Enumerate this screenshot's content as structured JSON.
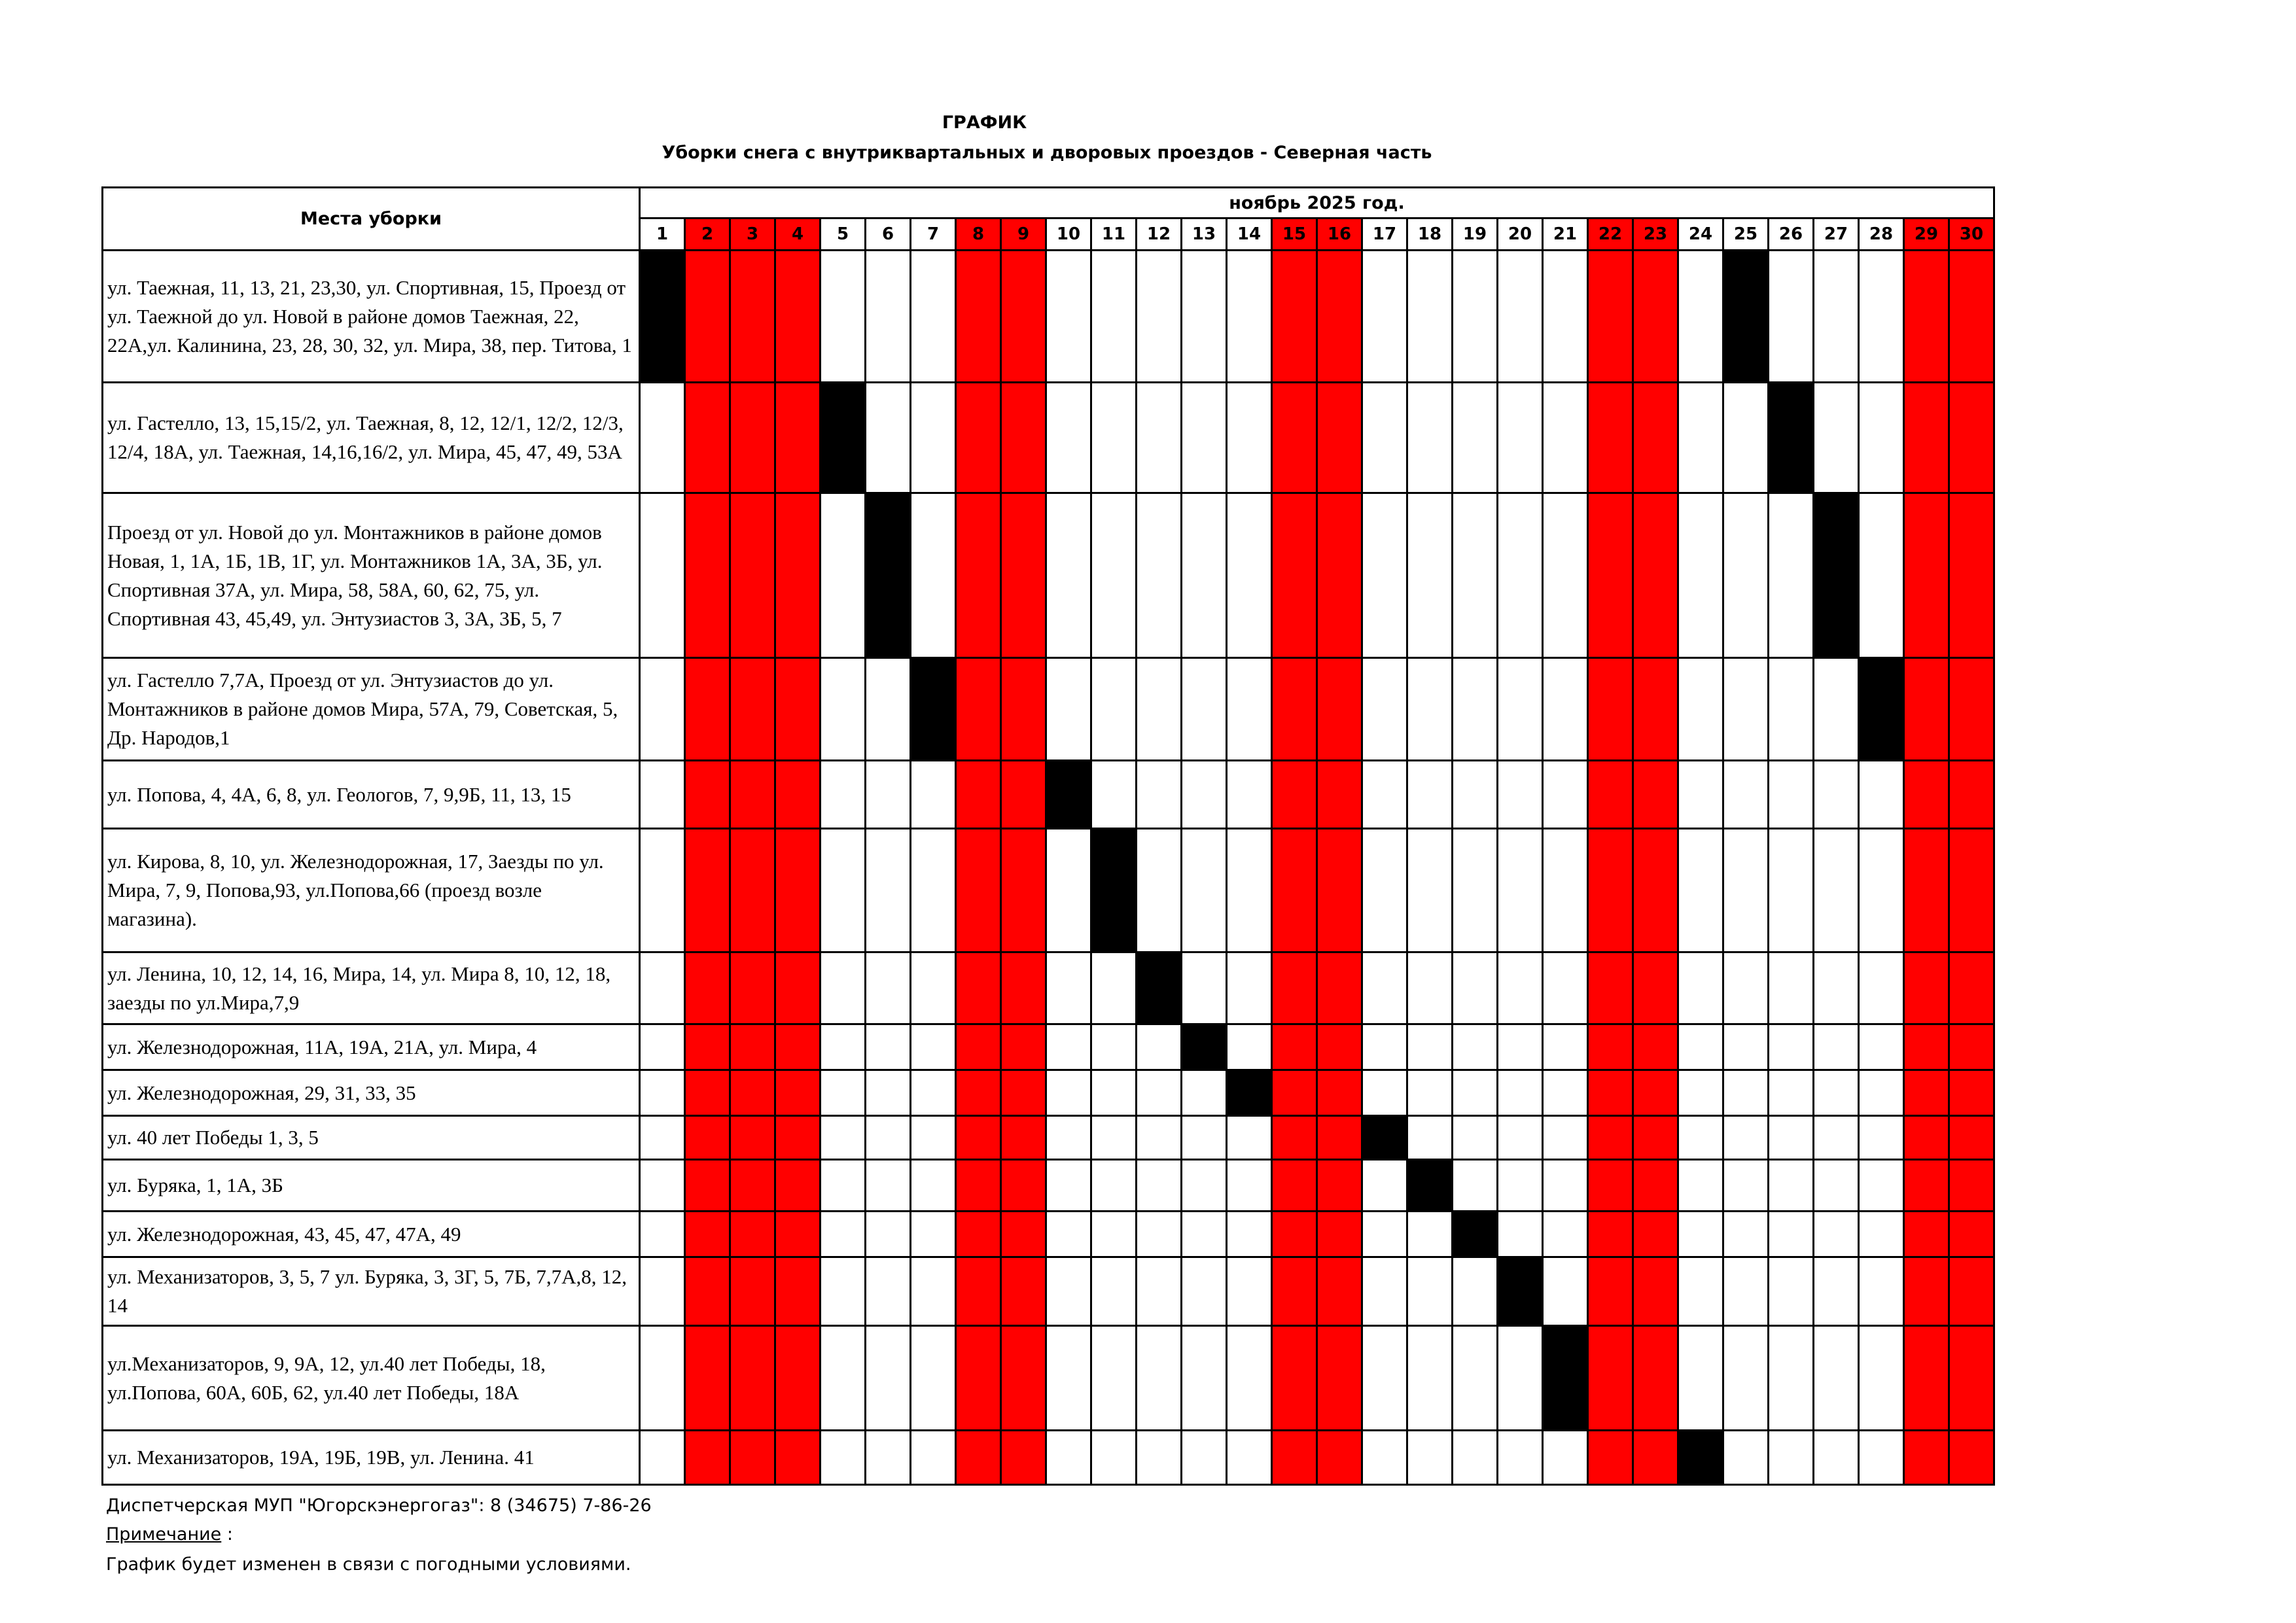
{
  "title": "ГРАФИК",
  "subtitle": "Уборки  снега  с внутриквартальных и дворовых проездов - Северная часть",
  "table": {
    "place_header": "Места уборки",
    "month_header": "ноябрь   2025 год.",
    "days": [
      1,
      2,
      3,
      4,
      5,
      6,
      7,
      8,
      9,
      10,
      11,
      12,
      13,
      14,
      15,
      16,
      17,
      18,
      19,
      20,
      21,
      22,
      23,
      24,
      25,
      26,
      27,
      28,
      29,
      30
    ],
    "weekend_days": [
      2,
      3,
      4,
      8,
      9,
      15,
      16,
      22,
      23,
      29,
      30
    ],
    "colors": {
      "weekend": "#ff0000",
      "scheduled": "#000000"
    },
    "rows": [
      {
        "address": "ул. Таежная, 11, 13, 21, 23,30,  ул. Спортивная, 15, Проезд от ул. Таежной до ул. Новой в районе домов Таежная, 22, 22А,ул. Калинина, 23, 28, 30, 32, ул. Мира, 38, пер. Титова, 1",
        "scheduled_days": [
          1,
          25
        ]
      },
      {
        "address": "ул. Гастелло, 13, 15,15/2, ул. Таежная, 8, 12, 12/1, 12/2, 12/3, 12/4, 18А, ул. Таежная, 14,16,16/2, ул. Мира, 45, 47, 49, 53А",
        "scheduled_days": [
          5,
          26
        ]
      },
      {
        "address": "Проезд от ул. Новой до ул. Монтажников в районе домов Новая, 1, 1А, 1Б, 1В, 1Г, ул. Монтажников 1А, 3А, 3Б, ул. Спортивная 37А, ул. Мира, 58, 58А, 60, 62, 75, ул. Спортивная 43, 45,49, ул. Энтузиастов 3, 3А, 3Б, 5, 7",
        "scheduled_days": [
          6,
          27
        ]
      },
      {
        "address": "ул. Гастелло 7,7А, Проезд от ул. Энтузиастов до ул. Монтажников в районе домов Мира, 57А, 79, Советская, 5, Др. Народов,1",
        "scheduled_days": [
          7,
          28
        ]
      },
      {
        "address": "ул. Попова, 4, 4А, 6, 8, ул. Геологов, 7, 9,9Б, 11, 13, 15",
        "scheduled_days": [
          10
        ]
      },
      {
        "address": "ул. Кирова, 8, 10, ул. Железнодорожная, 17, Заезды по ул. Мира, 7, 9,  Попова,93, ул.Попова,66 (проезд возле магазина).",
        "scheduled_days": [
          11
        ]
      },
      {
        "address": "ул. Ленина, 10, 12, 14, 16, Мира, 14, ул. Мира 8, 10, 12, 18, заезды по ул.Мира,7,9",
        "scheduled_days": [
          12
        ]
      },
      {
        "address": "ул. Железнодорожная, 11А, 19А, 21А, ул. Мира, 4",
        "scheduled_days": [
          13
        ]
      },
      {
        "address": "ул. Железнодорожная, 29, 31, 33, 35",
        "scheduled_days": [
          14
        ]
      },
      {
        "address": "ул. 40 лет Победы 1, 3, 5",
        "scheduled_days": [
          17
        ]
      },
      {
        "address": "ул. Буряка, 1, 1А, 3Б",
        "scheduled_days": [
          18
        ]
      },
      {
        "address": "ул. Железнодорожная, 43, 45, 47, 47А, 49",
        "scheduled_days": [
          19
        ]
      },
      {
        "address": "ул. Механизаторов, 3, 5, 7 ул. Буряка, 3, 3Г, 5, 7Б, 7,7А,8, 12, 14",
        "scheduled_days": [
          20
        ]
      },
      {
        "address": "ул.Механизаторов, 9, 9А, 12, ул.40 лет Победы, 18, ул.Попова, 60А, 60Б, 62, ул.40 лет Победы, 18А",
        "scheduled_days": [
          21
        ]
      },
      {
        "address": "ул. Механизаторов, 19А, 19Б, 19В, ул. Ленина. 41",
        "scheduled_days": [
          24
        ]
      }
    ]
  },
  "footer": {
    "dispatch": "Диспетчерская МУП \"Югорскэнергогаз\":   8 (34675) 7-86-26",
    "note_label": "Примечание",
    "note_colon": " :",
    "note_text": "График будет изменен в связи с погодными условиями."
  }
}
